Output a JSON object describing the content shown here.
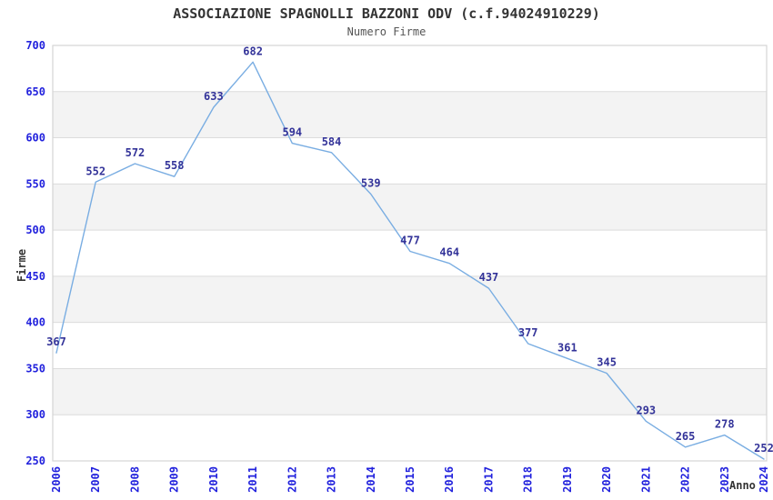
{
  "page": {
    "background": "#ffffff"
  },
  "chart_data": {
    "type": "line",
    "title": "ASSOCIAZIONE SPAGNOLLI BAZZONI ODV (c.f.94024910229)",
    "subtitle": "Numero Firme",
    "xlabel": "Anno",
    "ylabel": "Firme",
    "x": [
      2006,
      2007,
      2008,
      2009,
      2010,
      2011,
      2012,
      2013,
      2014,
      2015,
      2016,
      2017,
      2018,
      2019,
      2020,
      2021,
      2022,
      2023,
      2024
    ],
    "series": [
      {
        "name": "Numero Firme",
        "values": [
          367,
          552,
          572,
          558,
          633,
          682,
          594,
          584,
          539,
          477,
          464,
          437,
          377,
          361,
          345,
          293,
          265,
          278,
          252
        ]
      }
    ],
    "point_labels_visible": true,
    "ylim": [
      250,
      700
    ],
    "ytick_step": 50,
    "grid": "horizontal-bands-alternating",
    "legend": "none",
    "colors": {
      "line": "#79ade2",
      "tick_label": "#2222dd",
      "point_label": "#333399",
      "band_fill": "#f3f3f3",
      "grid_line": "#dcdcdc",
      "plot_border": "#d4d4d4",
      "title": "#333333",
      "subtitle": "#555555",
      "axis_label": "#333333"
    }
  }
}
